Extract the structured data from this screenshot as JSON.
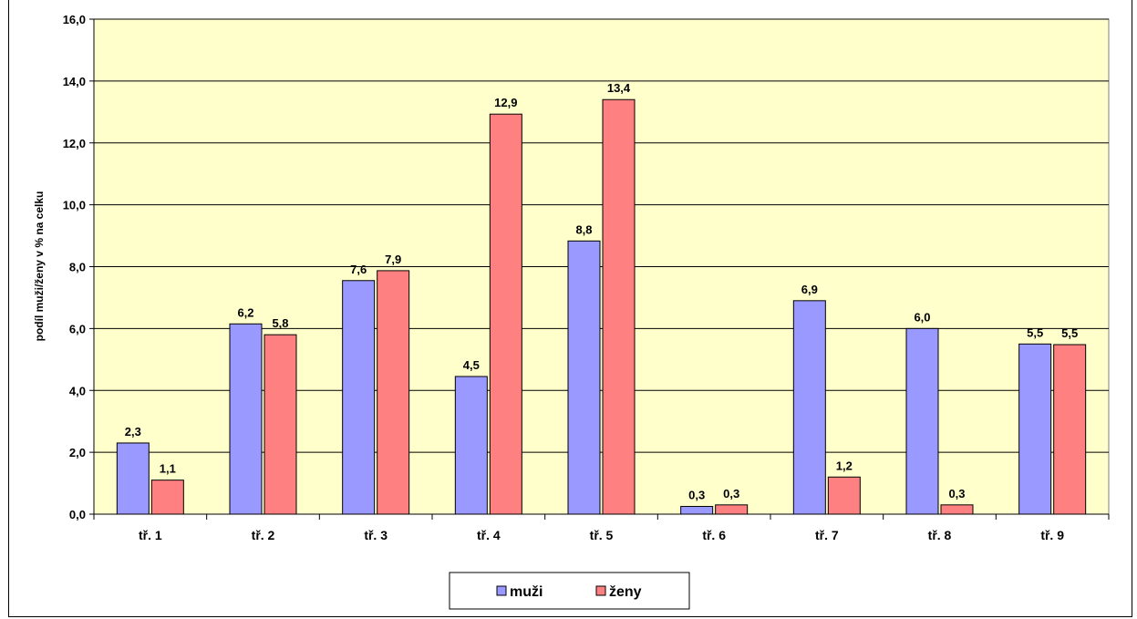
{
  "chart_data": {
    "type": "bar",
    "title": "",
    "xlabel": "",
    "ylabel": "podíl muži/ženy v % na celku",
    "ylim": [
      0,
      16
    ],
    "ytick_step": 2,
    "ytick_labels": [
      "0,0",
      "2,0",
      "4,0",
      "6,0",
      "8,0",
      "10,0",
      "12,0",
      "14,0",
      "16,0"
    ],
    "grid": true,
    "plot_background": "#FFFFCC",
    "legend_position": "bottom",
    "categories": [
      "tř. 1",
      "tř. 2",
      "tř. 3",
      "tř. 4",
      "tř. 5",
      "tř. 6",
      "tř. 7",
      "tř. 8",
      "tř. 9"
    ],
    "series": [
      {
        "name": "muži",
        "color": "#9999FF",
        "values": [
          2.3,
          6.15,
          7.55,
          4.45,
          8.83,
          0.25,
          6.9,
          6.0,
          5.5
        ],
        "labels": [
          "2,3",
          "6,2",
          "7,6",
          "4,5",
          "8,8",
          "0,3",
          "6,9",
          "6,0",
          "5,5"
        ]
      },
      {
        "name": "ženy",
        "color": "#FF8080",
        "values": [
          1.1,
          5.8,
          7.87,
          12.93,
          13.4,
          0.3,
          1.2,
          0.3,
          5.48
        ],
        "labels": [
          "1,1",
          "5,8",
          "7,9",
          "12,9",
          "13,4",
          "0,3",
          "1,2",
          "0,3",
          "5,5"
        ]
      }
    ]
  }
}
